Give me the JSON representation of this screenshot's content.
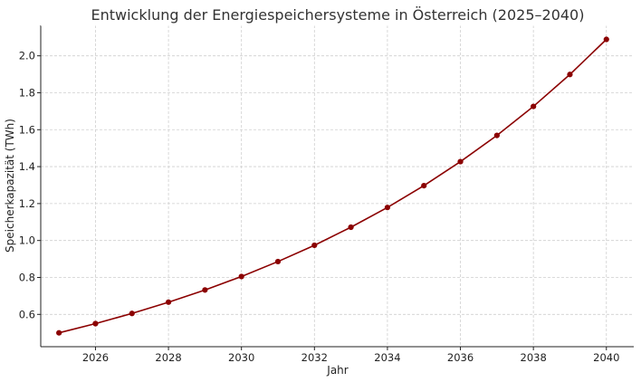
{
  "chart_data": {
    "type": "line",
    "title": "Entwicklung der Energiespeichersysteme in Österreich (2025–2040)",
    "xlabel": "Jahr",
    "ylabel": "Speicherkapazität (TWh)",
    "xlim": [
      2024.5,
      2040.75
    ],
    "ylim": [
      0.425,
      2.165
    ],
    "xticks": [
      2026,
      2028,
      2030,
      2032,
      2034,
      2036,
      2038,
      2040
    ],
    "xtick_labels": [
      "2026",
      "2028",
      "2030",
      "2032",
      "2034",
      "2036",
      "2038",
      "2040"
    ],
    "yticks": [
      0.6,
      0.8,
      1.0,
      1.2,
      1.4,
      1.6,
      1.8,
      2.0
    ],
    "ytick_labels": [
      "0.6",
      "0.8",
      "1.0",
      "1.2",
      "1.4",
      "1.6",
      "1.8",
      "2.0"
    ],
    "grid": true,
    "colors": {
      "line": "#8b0000",
      "marker": "#8b0000"
    },
    "x": [
      2025,
      2026,
      2027,
      2028,
      2029,
      2030,
      2031,
      2032,
      2033,
      2034,
      2035,
      2036,
      2037,
      2038,
      2039,
      2040
    ],
    "series": [
      {
        "values": [
          0.5,
          0.55,
          0.605,
          0.666,
          0.732,
          0.805,
          0.886,
          0.974,
          1.072,
          1.179,
          1.297,
          1.427,
          1.569,
          1.726,
          1.899,
          2.089
        ]
      }
    ]
  }
}
